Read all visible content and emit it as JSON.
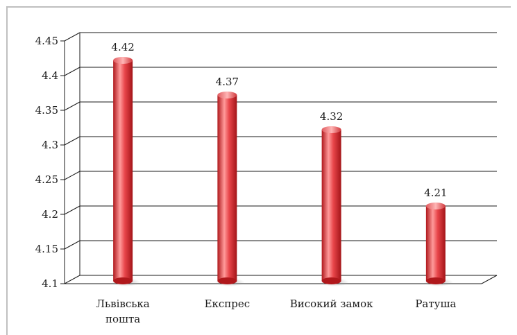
{
  "chart_data": {
    "type": "bar",
    "categories": [
      "Львівська пошта",
      "Експрес",
      "Високий замок",
      "Ратуша"
    ],
    "category_lines": [
      [
        "Львівська",
        "пошта"
      ],
      [
        "Експрес"
      ],
      [
        "Високий замок"
      ],
      [
        "Ратуша"
      ]
    ],
    "values": [
      4.42,
      4.37,
      4.32,
      4.21
    ],
    "data_labels": [
      "4.42",
      "4.37",
      "4.32",
      "4.21"
    ],
    "y_ticks": [
      "4.45",
      "4.4",
      "4.35",
      "4.3",
      "4.25",
      "4.2",
      "4.15",
      "4.1"
    ],
    "ylim": [
      4.1,
      4.45
    ],
    "title": "",
    "xlabel": "",
    "ylabel": "",
    "grid": true,
    "legend": "none",
    "bar_style": "3d-cylinder",
    "colors": {
      "bar_light": "#ff9a9a",
      "bar_mid": "#e8454a",
      "bar_dark": "#b0181c",
      "grid": "#1a1a1a",
      "frame": "#bfbfbf"
    }
  }
}
